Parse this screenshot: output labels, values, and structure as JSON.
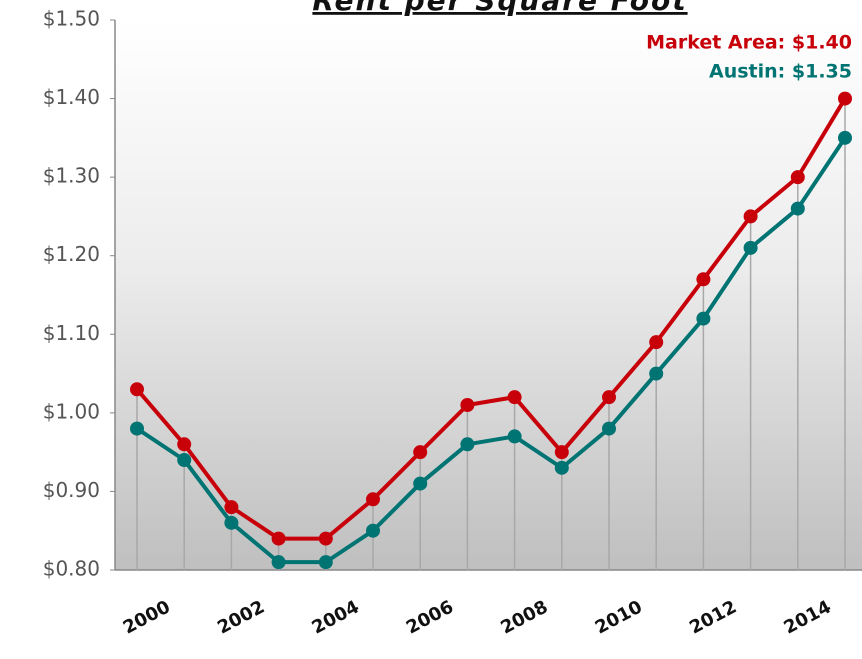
{
  "chart_data": {
    "type": "line",
    "title": "Rent per Square Foot",
    "annotations": [
      "Market Area: $1.40",
      "Austin: $1.35"
    ],
    "categories": [
      "2000",
      null,
      "2002",
      null,
      "2004",
      null,
      "2006",
      null,
      "2008",
      null,
      "2010",
      null,
      "2012",
      null,
      "2014",
      null
    ],
    "series": [
      {
        "name": "Market Area",
        "color": "#c8000a",
        "values": [
          1.03,
          0.96,
          0.88,
          0.84,
          0.84,
          0.89,
          0.95,
          1.01,
          1.02,
          0.95,
          1.02,
          1.09,
          1.17,
          1.25,
          1.3,
          1.4
        ]
      },
      {
        "name": "Austin",
        "color": "#007373",
        "values": [
          0.98,
          0.94,
          0.86,
          0.81,
          0.81,
          0.85,
          0.91,
          0.96,
          0.97,
          0.93,
          0.98,
          1.05,
          1.12,
          1.21,
          1.26,
          1.35
        ]
      }
    ],
    "ylim": [
      0.8,
      1.5
    ],
    "yticks": [
      {
        "value": 0.8,
        "label": "$0.80"
      },
      {
        "value": 0.9,
        "label": "$0.90"
      },
      {
        "value": 1.0,
        "label": "$1.00"
      },
      {
        "value": 1.1,
        "label": "$1.10"
      },
      {
        "value": 1.2,
        "label": "$1.20"
      },
      {
        "value": 1.3,
        "label": "$1.30"
      },
      {
        "value": 1.4,
        "label": "$1.40"
      },
      {
        "value": 1.5,
        "label": "$1.50"
      }
    ],
    "grid": false
  }
}
